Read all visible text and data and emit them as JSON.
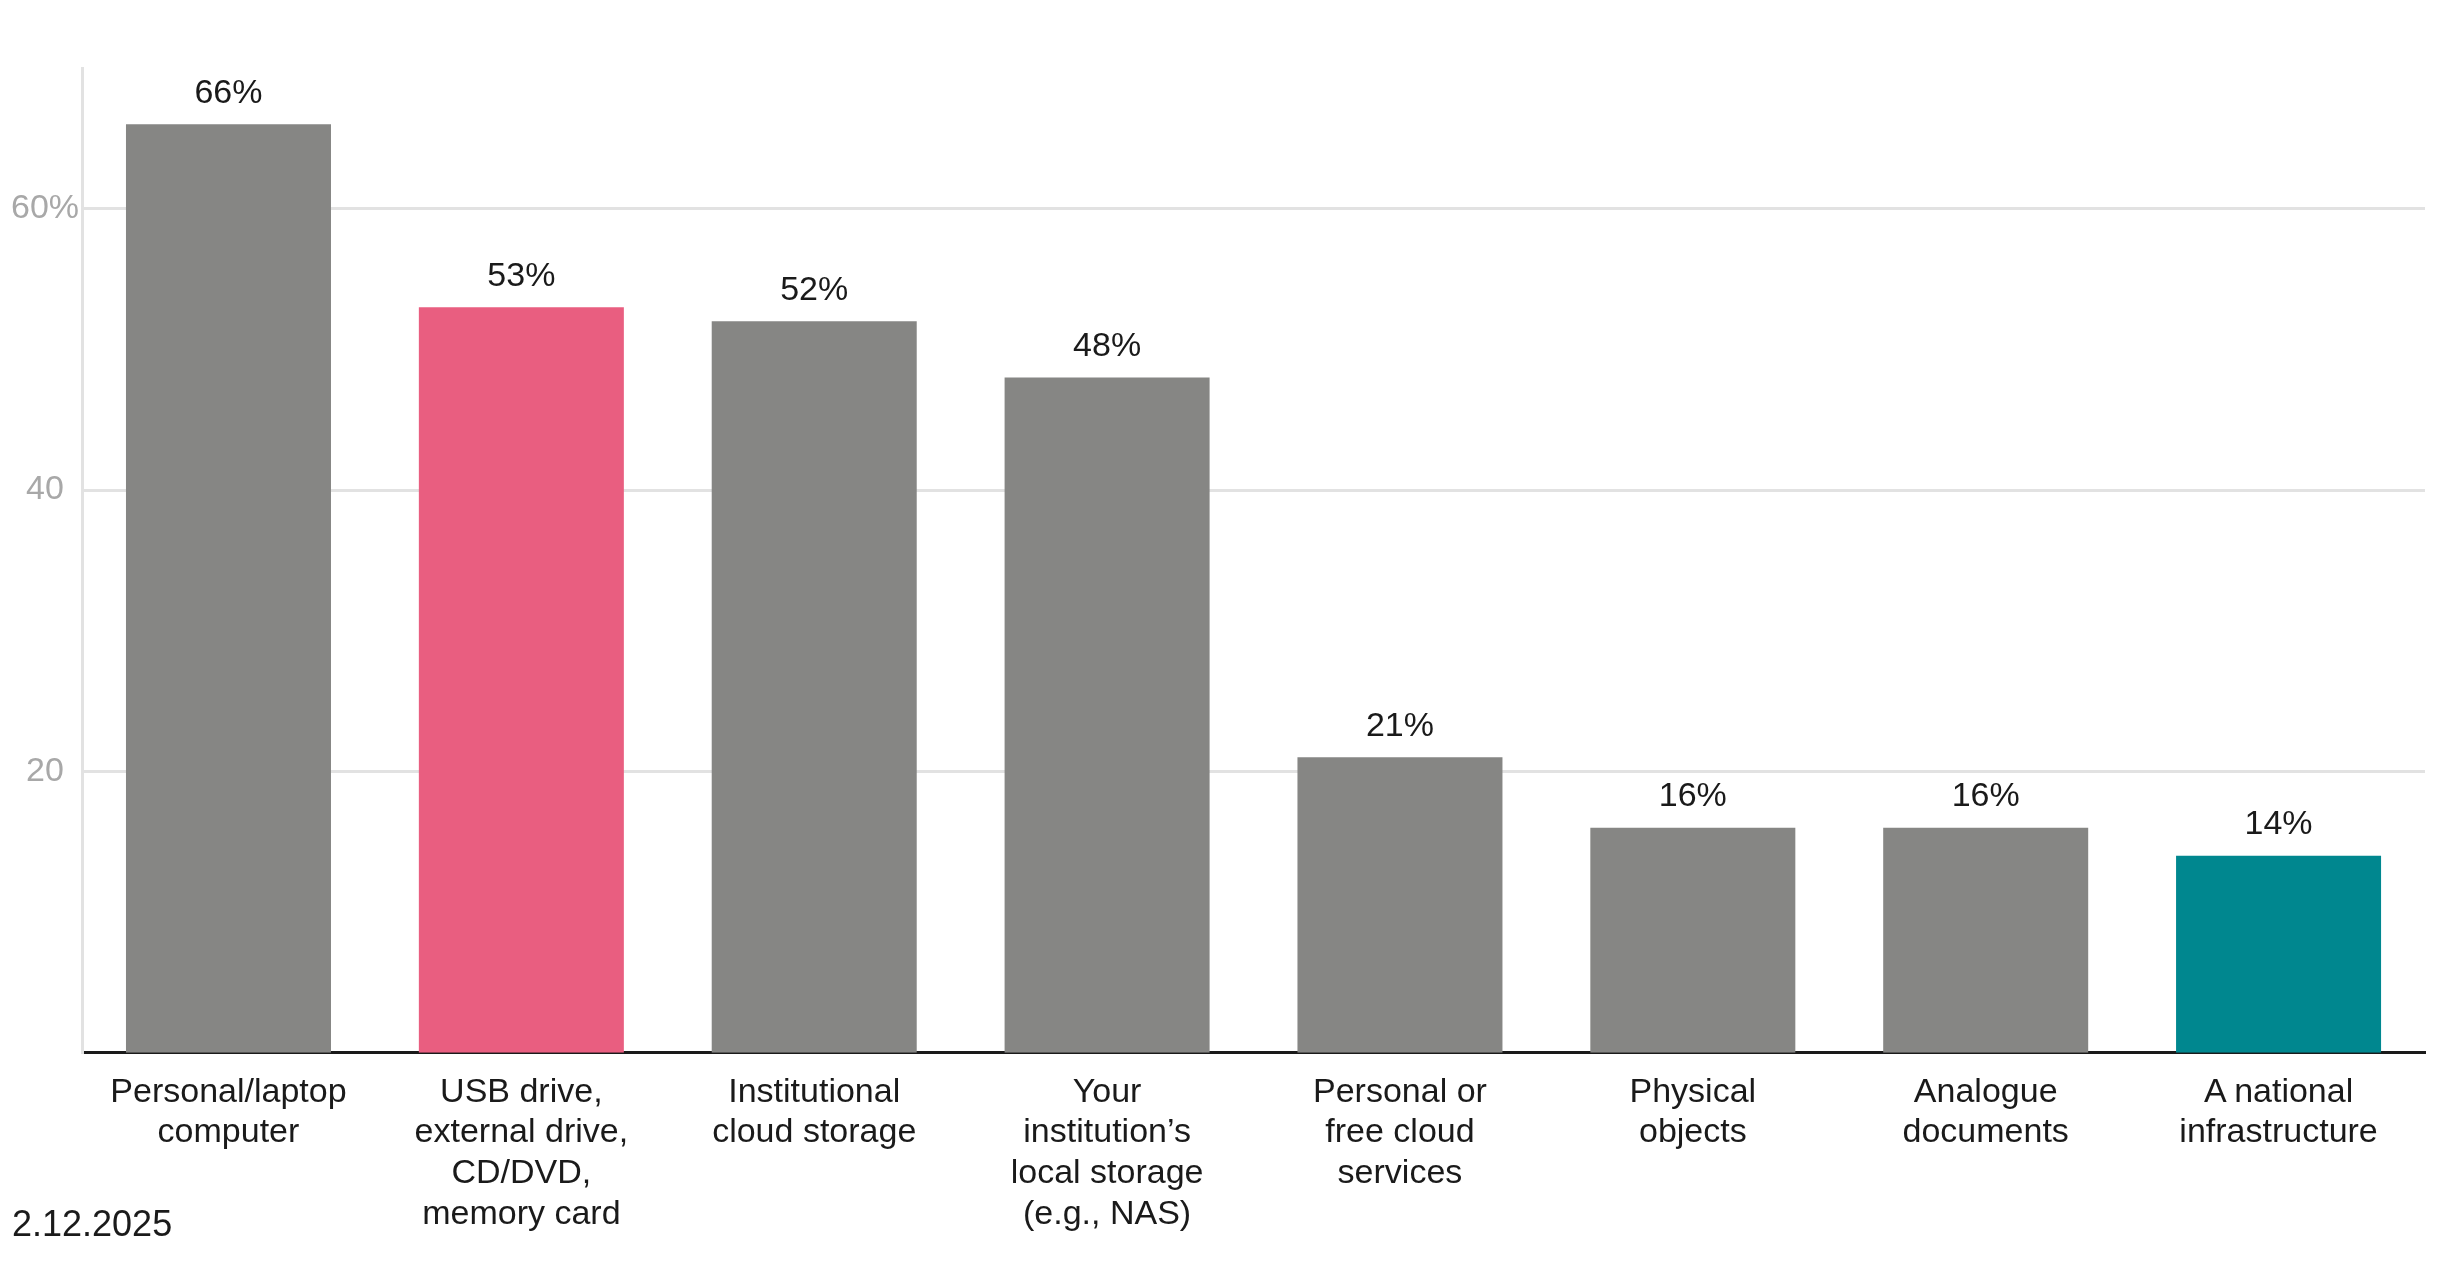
{
  "chart_data": {
    "type": "bar",
    "categories": [
      "Personal/laptop computer",
      "USB drive, external drive, CD/DVD, memory card",
      "Institutional cloud storage",
      "Your institution’s local storage (e.g., NAS)",
      "Personal or free cloud services",
      "Physical objects",
      "Analogue documents",
      "A national infrastructure"
    ],
    "values": [
      66,
      53,
      52,
      48,
      21,
      16,
      16,
      14
    ],
    "value_labels": [
      "66%",
      "53%",
      "52%",
      "48%",
      "21%",
      "16%",
      "16%",
      "14%"
    ],
    "colors": [
      "#868684",
      "#e95e80",
      "#868684",
      "#868684",
      "#868684",
      "#868684",
      "#868684",
      "#00878f"
    ],
    "ylim": [
      0,
      70
    ],
    "yticks": [
      20,
      40,
      {
        "value": 60,
        "label": "60%"
      }
    ],
    "grid": "y",
    "legend": false,
    "annotations": [
      "2.12.2025"
    ]
  }
}
